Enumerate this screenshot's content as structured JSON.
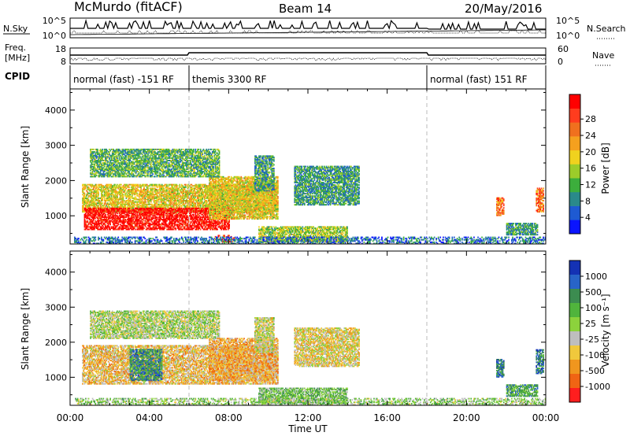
{
  "header": {
    "radar": "McMurdo (fitACF)",
    "beam": "Beam 14",
    "date": "20/May/2016"
  },
  "top_panels": {
    "nsky_label": "N.Sky",
    "nsearch_label": "N.Search",
    "nsky_ticks": [
      "10^5",
      "10^0"
    ],
    "nsearch_ticks": [
      "10^5",
      "10^0"
    ],
    "freq_label_1": "Freq.",
    "freq_label_2": "[MHz]",
    "freq_ticks": [
      "18",
      "8"
    ],
    "nave_label": "Nave",
    "nave_ticks": [
      "60",
      "0"
    ],
    "cpid_label": "CPID",
    "cpid_segments": [
      {
        "label": "normal (fast) -151 RF",
        "start": 0,
        "end": 6
      },
      {
        "label": "themis 3300 RF",
        "start": 6,
        "end": 18
      },
      {
        "label": "normal (fast) 151 RF",
        "start": 18,
        "end": 24
      }
    ]
  },
  "chart_data": [
    {
      "type": "heatmap",
      "name": "power",
      "ylabel": "Slant Range [km]",
      "yticks": [
        "1000",
        "2000",
        "3000",
        "4000"
      ],
      "ylim": [
        200,
        4600
      ],
      "xlim": [
        0,
        24
      ],
      "colorbar_label": "Power [dB]",
      "colorbar_ticks": [
        "4",
        "8",
        "12",
        "16",
        "20",
        "24",
        "28"
      ],
      "colorbar_colors": [
        "#0a14ff",
        "#1e5ad2",
        "#2a8a8a",
        "#3cae3c",
        "#9ccc2a",
        "#f0d21e",
        "#f5a01e",
        "#f0701e",
        "#ff3c1e",
        "#ff0000"
      ],
      "regions": [
        {
          "t0": 0.6,
          "t1": 10.5,
          "r0": 1100,
          "r1": 1900,
          "level": 0.55
        },
        {
          "t0": 0.7,
          "t1": 8.0,
          "r0": 600,
          "r1": 1200,
          "level": 0.95
        },
        {
          "t0": 7.0,
          "t1": 10.5,
          "r0": 900,
          "r1": 2100,
          "level": 0.55
        },
        {
          "t0": 1.0,
          "t1": 7.5,
          "r0": 2100,
          "r1": 2900,
          "level": 0.35
        },
        {
          "t0": 9.3,
          "t1": 10.3,
          "r0": 1700,
          "r1": 2700,
          "level": 0.3
        },
        {
          "t0": 11.3,
          "t1": 14.6,
          "r0": 1300,
          "r1": 2400,
          "level": 0.3
        },
        {
          "t0": 7.3,
          "t1": 8.3,
          "r0": 250,
          "r1": 450,
          "level": 0.85
        },
        {
          "t0": 9.5,
          "t1": 14.0,
          "r0": 250,
          "r1": 700,
          "level": 0.45
        },
        {
          "t0": 0.2,
          "t1": 24.0,
          "r0": 200,
          "r1": 380,
          "level": 0.2
        },
        {
          "t0": 21.5,
          "t1": 21.9,
          "r0": 1000,
          "r1": 1500,
          "level": 0.75
        },
        {
          "t0": 23.5,
          "t1": 23.9,
          "r0": 1100,
          "r1": 1800,
          "level": 0.75
        },
        {
          "t0": 22.0,
          "t1": 23.6,
          "r0": 450,
          "r1": 800,
          "level": 0.3
        }
      ]
    },
    {
      "type": "heatmap",
      "name": "velocity",
      "ylabel": "Slant Range [km]",
      "yticks": [
        "1000",
        "2000",
        "3000",
        "4000"
      ],
      "ylim": [
        200,
        4600
      ],
      "xlim": [
        0,
        24
      ],
      "xlabel": "Time UT",
      "xticks": [
        "00:00",
        "04:00",
        "08:00",
        "12:00",
        "16:00",
        "20:00",
        "00:00"
      ],
      "colorbar_label": "Velocity [m s⁻¹]",
      "colorbar_ticks": [
        "1000",
        "500",
        "100",
        "25",
        "-25",
        "-100",
        "-500",
        "-1000"
      ],
      "colorbar_colors": [
        "#1432b4",
        "#2864c8",
        "#3c8c50",
        "#50b43c",
        "#8cd23c",
        "#bebebe",
        "#f0c83c",
        "#f0961e",
        "#f06414",
        "#ff1e1e"
      ],
      "regions": [
        {
          "t0": 0.6,
          "t1": 10.5,
          "r0": 800,
          "r1": 1900,
          "level": 0.35
        },
        {
          "t0": 3.0,
          "t1": 4.6,
          "r0": 900,
          "r1": 1800,
          "level": 0.75
        },
        {
          "t0": 1.0,
          "t1": 7.5,
          "r0": 2100,
          "r1": 2900,
          "level": 0.5
        },
        {
          "t0": 7.0,
          "t1": 10.5,
          "r0": 900,
          "r1": 2100,
          "level": 0.3
        },
        {
          "t0": 9.3,
          "t1": 10.3,
          "r0": 1700,
          "r1": 2700,
          "level": 0.45
        },
        {
          "t0": 11.3,
          "t1": 14.6,
          "r0": 1300,
          "r1": 2400,
          "level": 0.4
        },
        {
          "t0": 9.5,
          "t1": 14.0,
          "r0": 250,
          "r1": 700,
          "level": 0.6
        },
        {
          "t0": 0.2,
          "t1": 24.0,
          "r0": 200,
          "r1": 380,
          "level": 0.55
        },
        {
          "t0": 21.5,
          "t1": 21.9,
          "r0": 1000,
          "r1": 1500,
          "level": 0.8
        },
        {
          "t0": 23.5,
          "t1": 23.9,
          "r0": 1100,
          "r1": 1800,
          "level": 0.8
        },
        {
          "t0": 22.0,
          "t1": 23.6,
          "r0": 450,
          "r1": 800,
          "level": 0.7
        }
      ]
    }
  ]
}
